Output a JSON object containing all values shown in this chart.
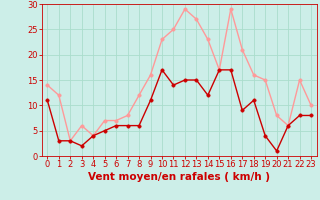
{
  "x": [
    0,
    1,
    2,
    3,
    4,
    5,
    6,
    7,
    8,
    9,
    10,
    11,
    12,
    13,
    14,
    15,
    16,
    17,
    18,
    19,
    20,
    21,
    22,
    23
  ],
  "wind_avg": [
    11,
    3,
    3,
    2,
    4,
    5,
    6,
    6,
    6,
    11,
    17,
    14,
    15,
    15,
    12,
    17,
    17,
    9,
    11,
    4,
    1,
    6,
    8,
    8
  ],
  "wind_gust": [
    14,
    12,
    3,
    6,
    4,
    7,
    7,
    8,
    12,
    16,
    23,
    25,
    29,
    27,
    23,
    17,
    29,
    21,
    16,
    15,
    8,
    6,
    15,
    10
  ],
  "avg_color": "#cc0000",
  "gust_color": "#ff9999",
  "bg_color": "#cceee8",
  "grid_color": "#aaddcc",
  "axis_color": "#cc0000",
  "xlabel": "Vent moyen/en rafales ( km/h )",
  "ylim": [
    0,
    30
  ],
  "yticks": [
    0,
    5,
    10,
    15,
    20,
    25,
    30
  ],
  "xlim": [
    -0.5,
    23.5
  ],
  "xlabel_fontsize": 7.5,
  "tick_fontsize": 6,
  "marker_size": 2.5,
  "linewidth": 1.0
}
